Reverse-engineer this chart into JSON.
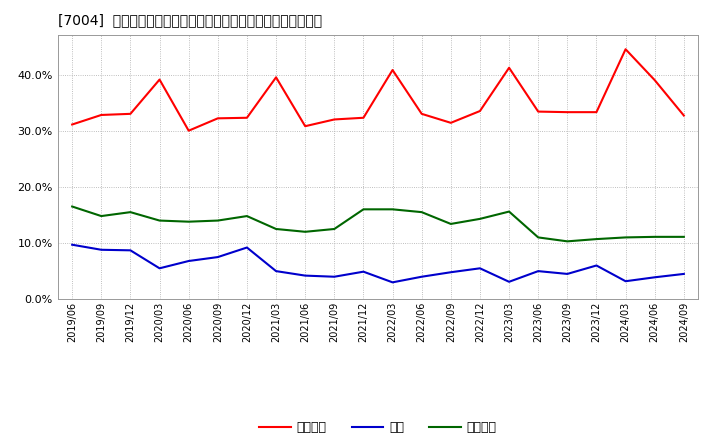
{
  "title": "[7004]  売上債権、在庫、買入債務の総資産に対する比率の推移",
  "x_labels": [
    "2019/06",
    "2019/09",
    "2019/12",
    "2020/03",
    "2020/06",
    "2020/09",
    "2020/12",
    "2021/03",
    "2021/06",
    "2021/09",
    "2021/12",
    "2022/03",
    "2022/06",
    "2022/09",
    "2022/12",
    "2023/03",
    "2023/06",
    "2023/09",
    "2023/12",
    "2024/03",
    "2024/06",
    "2024/09"
  ],
  "urikake": [
    0.311,
    0.328,
    0.33,
    0.391,
    0.3,
    0.322,
    0.323,
    0.395,
    0.308,
    0.32,
    0.323,
    0.408,
    0.33,
    0.314,
    0.335,
    0.412,
    0.334,
    0.333,
    0.333,
    0.445,
    0.39,
    0.327
  ],
  "zaiko": [
    0.097,
    0.088,
    0.087,
    0.055,
    0.068,
    0.075,
    0.092,
    0.05,
    0.042,
    0.04,
    0.049,
    0.03,
    0.04,
    0.048,
    0.055,
    0.031,
    0.05,
    0.045,
    0.06,
    0.032,
    0.039,
    0.045
  ],
  "kaiire": [
    0.165,
    0.148,
    0.155,
    0.14,
    0.138,
    0.14,
    0.148,
    0.125,
    0.12,
    0.125,
    0.16,
    0.16,
    0.155,
    0.134,
    0.143,
    0.156,
    0.11,
    0.103,
    0.107,
    0.11,
    0.111,
    0.111
  ],
  "urikake_color": "#ff0000",
  "zaiko_color": "#0000cc",
  "kaiire_color": "#006600",
  "bg_color": "#ffffff",
  "plot_bg_color": "#ffffff",
  "grid_color": "#aaaaaa",
  "ylim": [
    0.0,
    0.47
  ],
  "yticks": [
    0.0,
    0.1,
    0.2,
    0.3,
    0.4
  ],
  "legend_labels": [
    "売上債権",
    "在庫",
    "買入債務"
  ]
}
